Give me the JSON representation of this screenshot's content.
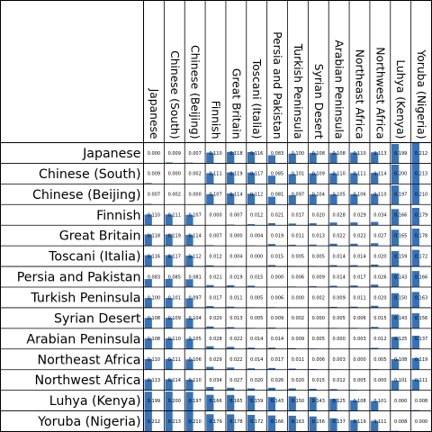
{
  "chart_data": {
    "type": "table",
    "title": "",
    "populations": [
      "Japanese",
      "Chinese (South)",
      "Chinese (Beijing)",
      "Finnish",
      "Great Britain",
      "Toscani (Italia)",
      "Persia and Pakistan",
      "Turkish Peninsula",
      "Syrian Desert",
      "Arabian Peninsula",
      "Northeast Africa",
      "Northwest Africa",
      "Luhya (Kenya)",
      "Yoruba (Nigeria)"
    ],
    "labels": [
      [
        "0.000",
        "0.009",
        "0.007",
        "0.110",
        "0.118",
        "0.116",
        "0.083",
        "0.100",
        "0.108",
        "0.108",
        "0.110",
        "0.113",
        "0.199",
        "0.212"
      ],
      [
        "0.009",
        "0.000",
        "0.002",
        "0.111",
        "0.119",
        "0.117",
        "0.085",
        "0.101",
        "0.109",
        "0.110",
        "0.111",
        "0.114",
        "0.200",
        "0.213"
      ],
      [
        "0.007",
        "0.002",
        "0.000",
        "0.107",
        "0.114",
        "0.112",
        "0.081",
        "0.097",
        "0.104",
        "0.105",
        "0.106",
        "0.110",
        "0.197",
        "0.210"
      ],
      [
        "0.110",
        "0.111",
        "0.107",
        "0.000",
        "0.007",
        "0.012",
        "0.021",
        "0.017",
        "0.020",
        "0.028",
        "0.029",
        "0.034",
        "0.166",
        "0.179"
      ],
      [
        "0.118",
        "0.119",
        "0.114",
        "0.007",
        "0.000",
        "0.004",
        "0.019",
        "0.011",
        "0.013",
        "0.022",
        "0.022",
        "0.027",
        "0.165",
        "0.178"
      ],
      [
        "0.116",
        "0.117",
        "0.112",
        "0.012",
        "0.004",
        "0.000",
        "0.015",
        "0.005",
        "0.005",
        "0.014",
        "0.014",
        "0.020",
        "0.159",
        "0.172"
      ],
      [
        "0.083",
        "0.085",
        "0.081",
        "0.021",
        "0.019",
        "0.015",
        "0.000",
        "0.006",
        "0.009",
        "0.014",
        "0.017",
        "0.026",
        "0.143",
        "0.166"
      ],
      [
        "0.100",
        "0.101",
        "0.097",
        "0.017",
        "0.011",
        "0.005",
        "0.006",
        "0.000",
        "0.002",
        "0.009",
        "0.011",
        "0.020",
        "0.150",
        "0.163"
      ],
      [
        "0.108",
        "0.109",
        "0.104",
        "0.020",
        "0.013",
        "0.005",
        "0.009",
        "0.002",
        "0.000",
        "0.005",
        "0.006",
        "0.015",
        "0.143",
        "0.156"
      ],
      [
        "0.108",
        "0.110",
        "0.105",
        "0.028",
        "0.022",
        "0.014",
        "0.014",
        "0.009",
        "0.005",
        "0.000",
        "0.003",
        "0.012",
        "0.125",
        "0.137"
      ],
      [
        "0.110",
        "0.111",
        "0.106",
        "0.029",
        "0.022",
        "0.014",
        "0.017",
        "0.011",
        "0.006",
        "0.003",
        "0.000",
        "0.005",
        "0.108",
        "0.119"
      ],
      [
        "0.113",
        "0.114",
        "0.110",
        "0.034",
        "0.027",
        "0.020",
        "0.026",
        "0.020",
        "0.015",
        "0.012",
        "0.005",
        "0.000",
        "0.101",
        "0.111"
      ],
      [
        "0.199",
        "0.200",
        "0.197",
        "0.166",
        "0.165",
        "0.159",
        "0.143",
        "0.150",
        "0.143",
        "0.125",
        "0.108",
        "0.101",
        "0.000",
        "0.008"
      ],
      [
        "0.212",
        "0.213",
        "0.210",
        "0.179",
        "0.178",
        "0.172",
        "0.166",
        "0.163",
        "0.156",
        "0.137",
        "0.119",
        "0.111",
        "0.008",
        "0.000"
      ]
    ],
    "bar_max": 0.213,
    "bar_color": "#3672b8",
    "grid_color": "#000000",
    "background": "#ffffff"
  }
}
